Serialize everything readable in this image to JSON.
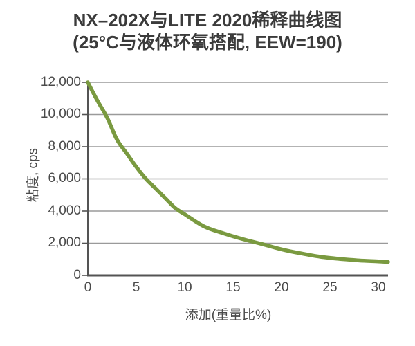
{
  "chart_data": {
    "type": "line",
    "title": "NX–202X与LITE 2020稀释曲线图",
    "subtitle": "(25°C与液体环氧搭配, EEW=190)",
    "xlabel": "添加(重量比%)",
    "ylabel": "粘度, cps",
    "xlim": [
      0,
      31
    ],
    "ylim": [
      0,
      12000
    ],
    "xtick_values": [
      0,
      5,
      10,
      15,
      20,
      25,
      30
    ],
    "xtick_labels": [
      "0",
      "5",
      "10",
      "15",
      "20",
      "25",
      "30"
    ],
    "ytick_values": [
      12000,
      10000,
      8000,
      6000,
      4000,
      2000,
      0
    ],
    "ytick_labels": [
      "12,000",
      "10,000",
      "8,000",
      "6,000",
      "4,000",
      "2,000",
      "0"
    ],
    "grid": "horizontal-only",
    "legend": "none",
    "series": [
      {
        "name": "NX-202X with LITE 2020 dilution curve",
        "x": [
          0,
          1,
          2,
          3,
          4,
          5,
          6,
          7,
          8,
          9,
          10,
          12,
          14,
          16,
          18,
          20,
          22,
          24,
          26,
          28,
          30,
          31
        ],
        "y": [
          12000,
          10850,
          9800,
          8450,
          7600,
          6750,
          6000,
          5400,
          4800,
          4200,
          3800,
          3050,
          2620,
          2260,
          1950,
          1620,
          1370,
          1160,
          1030,
          930,
          870,
          840
        ]
      }
    ],
    "colors": {
      "curve": "#7a9a40",
      "gridline": "#9a9a9a",
      "axis": "#545454",
      "title_text": "#3b3b3b",
      "tick_text": "#4a4a4a",
      "background": "#ffffff"
    }
  }
}
